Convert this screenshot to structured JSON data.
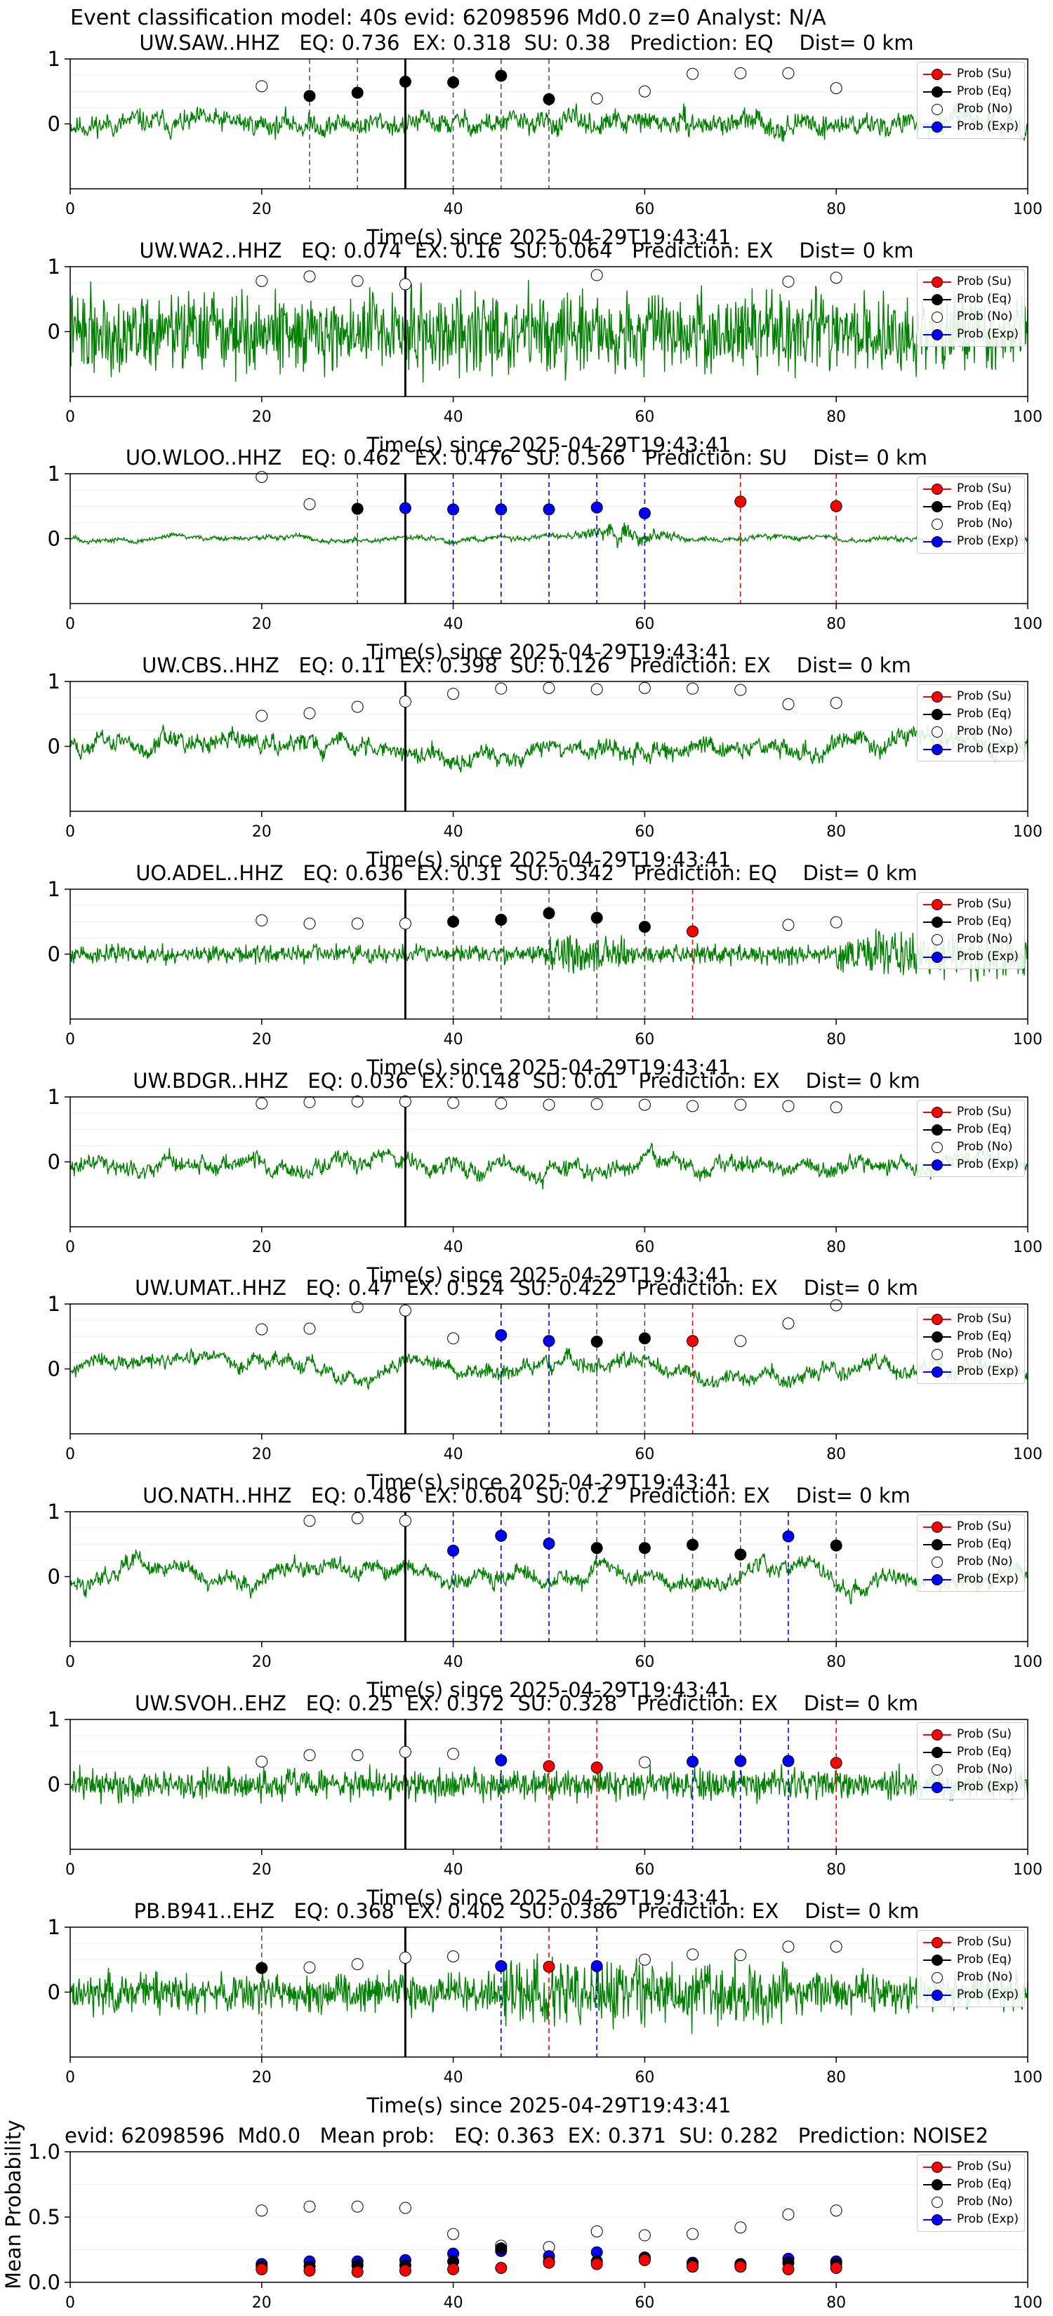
{
  "figure_title": "Event classification model: 40s evid: 62098596 Md0.0 z=0 Analyst: N/A",
  "colors": {
    "waveform": "#008000",
    "su": "#ff0000",
    "eq": "#000000",
    "no": "#ffffff",
    "exp": "#0000ff",
    "origin_line": "#000000"
  },
  "legend": [
    "Prob (Su)",
    "Prob (Eq)",
    "Prob (No)",
    "Prob (Exp)"
  ],
  "chart_data": [
    {
      "type": "line",
      "title": "UW.SAW..HHZ   EQ: 0.736  EX: 0.318  SU: 0.38   Prediction: EQ    Dist= 0 km",
      "xlabel": "Time(s) since 2025-04-29T19:43:41",
      "xlim": [
        0,
        100
      ],
      "ylim": [
        -1,
        1
      ],
      "xticks": [
        "0",
        "20",
        "40",
        "60",
        "80",
        "100"
      ],
      "yticks": [
        "1",
        "0"
      ],
      "origin_time": 35,
      "waveform": {
        "amplitude": 0.35,
        "style": "mixed",
        "seed": 11
      },
      "probs": [
        {
          "t": 20,
          "p": 0.58,
          "cls": "no"
        },
        {
          "t": 25,
          "p": 0.43,
          "cls": "eq"
        },
        {
          "t": 30,
          "p": 0.48,
          "cls": "eq"
        },
        {
          "t": 35,
          "p": 0.65,
          "cls": "eq"
        },
        {
          "t": 40,
          "p": 0.64,
          "cls": "eq"
        },
        {
          "t": 45,
          "p": 0.74,
          "cls": "eq"
        },
        {
          "t": 50,
          "p": 0.38,
          "cls": "eq"
        },
        {
          "t": 55,
          "p": 0.39,
          "cls": "no"
        },
        {
          "t": 60,
          "p": 0.5,
          "cls": "no"
        },
        {
          "t": 65,
          "p": 0.77,
          "cls": "no"
        },
        {
          "t": 70,
          "p": 0.78,
          "cls": "no"
        },
        {
          "t": 75,
          "p": 0.78,
          "cls": "no"
        },
        {
          "t": 80,
          "p": 0.55,
          "cls": "no"
        }
      ]
    },
    {
      "type": "line",
      "title": "UW.WA2..HHZ   EQ: 0.074  EX: 0.16  SU: 0.064   Prediction: EX    Dist= 0 km",
      "xlabel": "Time(s) since 2025-04-29T19:43:41",
      "xlim": [
        0,
        100
      ],
      "ylim": [
        -1,
        1
      ],
      "xticks": [
        "0",
        "20",
        "40",
        "60",
        "80",
        "100"
      ],
      "yticks": [
        "1",
        "0"
      ],
      "origin_time": 35,
      "waveform": {
        "amplitude": 0.9,
        "style": "noise",
        "seed": 22
      },
      "probs": [
        {
          "t": 20,
          "p": 0.78,
          "cls": "no"
        },
        {
          "t": 25,
          "p": 0.85,
          "cls": "no"
        },
        {
          "t": 30,
          "p": 0.78,
          "cls": "no"
        },
        {
          "t": 35,
          "p": 0.73,
          "cls": "no"
        },
        {
          "t": 55,
          "p": 0.87,
          "cls": "no"
        },
        {
          "t": 75,
          "p": 0.77,
          "cls": "no"
        },
        {
          "t": 80,
          "p": 0.83,
          "cls": "no"
        }
      ]
    },
    {
      "type": "line",
      "title": "UO.WLOO..HHZ   EQ: 0.462  EX: 0.476  SU: 0.566   Prediction: SU    Dist= 0 km",
      "xlabel": "Time(s) since 2025-04-29T19:43:41",
      "xlim": [
        0,
        100
      ],
      "ylim": [
        -1,
        1
      ],
      "xticks": [
        "0",
        "20",
        "40",
        "60",
        "80",
        "100"
      ],
      "yticks": [
        "1",
        "0"
      ],
      "origin_time": 35,
      "waveform": {
        "amplitude": 0.2,
        "style": "burst",
        "seed": 33
      },
      "probs": [
        {
          "t": 20,
          "p": 0.95,
          "cls": "no"
        },
        {
          "t": 25,
          "p": 0.53,
          "cls": "no"
        },
        {
          "t": 30,
          "p": 0.46,
          "cls": "eq"
        },
        {
          "t": 35,
          "p": 0.47,
          "cls": "exp"
        },
        {
          "t": 40,
          "p": 0.45,
          "cls": "exp"
        },
        {
          "t": 45,
          "p": 0.45,
          "cls": "exp"
        },
        {
          "t": 50,
          "p": 0.45,
          "cls": "exp"
        },
        {
          "t": 55,
          "p": 0.48,
          "cls": "exp"
        },
        {
          "t": 60,
          "p": 0.39,
          "cls": "exp"
        },
        {
          "t": 70,
          "p": 0.57,
          "cls": "su"
        },
        {
          "t": 80,
          "p": 0.5,
          "cls": "su"
        }
      ]
    },
    {
      "type": "line",
      "title": "UW.CBS..HHZ   EQ: 0.11  EX: 0.398  SU: 0.126   Prediction: EX    Dist= 0 km",
      "xlabel": "Time(s) since 2025-04-29T19:43:41",
      "xlim": [
        0,
        100
      ],
      "ylim": [
        -1,
        1
      ],
      "xticks": [
        "0",
        "20",
        "40",
        "60",
        "80",
        "100"
      ],
      "yticks": [
        "1",
        "0"
      ],
      "origin_time": 35,
      "waveform": {
        "amplitude": 0.55,
        "style": "wavy",
        "seed": 44
      },
      "probs": [
        {
          "t": 20,
          "p": 0.47,
          "cls": "no"
        },
        {
          "t": 25,
          "p": 0.51,
          "cls": "no"
        },
        {
          "t": 30,
          "p": 0.61,
          "cls": "no"
        },
        {
          "t": 35,
          "p": 0.69,
          "cls": "no"
        },
        {
          "t": 40,
          "p": 0.81,
          "cls": "no"
        },
        {
          "t": 45,
          "p": 0.89,
          "cls": "no"
        },
        {
          "t": 50,
          "p": 0.9,
          "cls": "no"
        },
        {
          "t": 55,
          "p": 0.88,
          "cls": "no"
        },
        {
          "t": 60,
          "p": 0.9,
          "cls": "no"
        },
        {
          "t": 65,
          "p": 0.89,
          "cls": "no"
        },
        {
          "t": 70,
          "p": 0.87,
          "cls": "no"
        },
        {
          "t": 75,
          "p": 0.65,
          "cls": "no"
        },
        {
          "t": 80,
          "p": 0.67,
          "cls": "no"
        }
      ]
    },
    {
      "type": "line",
      "title": "UO.ADEL..HHZ   EQ: 0.636  EX: 0.31  SU: 0.342   Prediction: EQ    Dist= 0 km",
      "xlabel": "Time(s) since 2025-04-29T19:43:41",
      "xlim": [
        0,
        100
      ],
      "ylim": [
        -1,
        1
      ],
      "xticks": [
        "0",
        "20",
        "40",
        "60",
        "80",
        "100"
      ],
      "yticks": [
        "1",
        "0"
      ],
      "origin_time": 35,
      "waveform": {
        "amplitude": 0.2,
        "style": "late",
        "seed": 55
      },
      "probs": [
        {
          "t": 20,
          "p": 0.52,
          "cls": "no"
        },
        {
          "t": 25,
          "p": 0.47,
          "cls": "no"
        },
        {
          "t": 30,
          "p": 0.47,
          "cls": "no"
        },
        {
          "t": 35,
          "p": 0.47,
          "cls": "no"
        },
        {
          "t": 40,
          "p": 0.5,
          "cls": "eq"
        },
        {
          "t": 45,
          "p": 0.53,
          "cls": "eq"
        },
        {
          "t": 50,
          "p": 0.63,
          "cls": "eq"
        },
        {
          "t": 55,
          "p": 0.56,
          "cls": "eq"
        },
        {
          "t": 60,
          "p": 0.42,
          "cls": "eq"
        },
        {
          "t": 65,
          "p": 0.35,
          "cls": "su"
        },
        {
          "t": 75,
          "p": 0.45,
          "cls": "no"
        },
        {
          "t": 80,
          "p": 0.49,
          "cls": "no"
        }
      ]
    },
    {
      "type": "line",
      "title": "UW.BDGR..HHZ   EQ: 0.036  EX: 0.148  SU: 0.01   Prediction: EX    Dist= 0 km",
      "xlabel": "Time(s) since 2025-04-29T19:43:41",
      "xlim": [
        0,
        100
      ],
      "ylim": [
        -1,
        1
      ],
      "xticks": [
        "0",
        "20",
        "40",
        "60",
        "80",
        "100"
      ],
      "yticks": [
        "1",
        "0"
      ],
      "origin_time": 35,
      "waveform": {
        "amplitude": 0.5,
        "style": "wavy",
        "seed": 66
      },
      "probs": [
        {
          "t": 20,
          "p": 0.9,
          "cls": "no"
        },
        {
          "t": 25,
          "p": 0.92,
          "cls": "no"
        },
        {
          "t": 30,
          "p": 0.93,
          "cls": "no"
        },
        {
          "t": 35,
          "p": 0.93,
          "cls": "no"
        },
        {
          "t": 40,
          "p": 0.91,
          "cls": "no"
        },
        {
          "t": 45,
          "p": 0.9,
          "cls": "no"
        },
        {
          "t": 50,
          "p": 0.88,
          "cls": "no"
        },
        {
          "t": 55,
          "p": 0.89,
          "cls": "no"
        },
        {
          "t": 60,
          "p": 0.88,
          "cls": "no"
        },
        {
          "t": 65,
          "p": 0.86,
          "cls": "no"
        },
        {
          "t": 70,
          "p": 0.88,
          "cls": "no"
        },
        {
          "t": 75,
          "p": 0.86,
          "cls": "no"
        },
        {
          "t": 80,
          "p": 0.84,
          "cls": "no"
        }
      ]
    },
    {
      "type": "line",
      "title": "UW.UMAT..HHZ   EQ: 0.47  EX: 0.524  SU: 0.422   Prediction: EX    Dist= 0 km",
      "xlabel": "Time(s) since 2025-04-29T19:43:41",
      "xlim": [
        0,
        100
      ],
      "ylim": [
        -1,
        1
      ],
      "xticks": [
        "0",
        "20",
        "40",
        "60",
        "80",
        "100"
      ],
      "yticks": [
        "1",
        "0"
      ],
      "origin_time": 35,
      "waveform": {
        "amplitude": 0.45,
        "style": "wavy",
        "seed": 77
      },
      "probs": [
        {
          "t": 20,
          "p": 0.61,
          "cls": "no"
        },
        {
          "t": 25,
          "p": 0.62,
          "cls": "no"
        },
        {
          "t": 30,
          "p": 0.95,
          "cls": "no"
        },
        {
          "t": 35,
          "p": 0.9,
          "cls": "no"
        },
        {
          "t": 40,
          "p": 0.47,
          "cls": "no"
        },
        {
          "t": 45,
          "p": 0.52,
          "cls": "exp"
        },
        {
          "t": 50,
          "p": 0.43,
          "cls": "exp"
        },
        {
          "t": 55,
          "p": 0.42,
          "cls": "eq"
        },
        {
          "t": 60,
          "p": 0.47,
          "cls": "eq"
        },
        {
          "t": 65,
          "p": 0.43,
          "cls": "su"
        },
        {
          "t": 70,
          "p": 0.43,
          "cls": "no"
        },
        {
          "t": 75,
          "p": 0.7,
          "cls": "no"
        },
        {
          "t": 80,
          "p": 0.98,
          "cls": "no"
        }
      ]
    },
    {
      "type": "line",
      "title": "UO.NATH..HHZ   EQ: 0.486  EX: 0.604  SU: 0.2   Prediction: EX    Dist= 0 km",
      "xlabel": "Time(s) since 2025-04-29T19:43:41",
      "xlim": [
        0,
        100
      ],
      "ylim": [
        -1,
        1
      ],
      "xticks": [
        "0",
        "20",
        "40",
        "60",
        "80",
        "100"
      ],
      "yticks": [
        "1",
        "0"
      ],
      "origin_time": 35,
      "waveform": {
        "amplitude": 0.5,
        "style": "wavy",
        "seed": 88
      },
      "probs": [
        {
          "t": 25,
          "p": 0.86,
          "cls": "no"
        },
        {
          "t": 30,
          "p": 0.9,
          "cls": "no"
        },
        {
          "t": 35,
          "p": 0.86,
          "cls": "no"
        },
        {
          "t": 40,
          "p": 0.4,
          "cls": "exp"
        },
        {
          "t": 45,
          "p": 0.63,
          "cls": "exp"
        },
        {
          "t": 50,
          "p": 0.51,
          "cls": "exp"
        },
        {
          "t": 55,
          "p": 0.44,
          "cls": "eq"
        },
        {
          "t": 60,
          "p": 0.44,
          "cls": "eq"
        },
        {
          "t": 65,
          "p": 0.49,
          "cls": "eq"
        },
        {
          "t": 70,
          "p": 0.34,
          "cls": "eq"
        },
        {
          "t": 75,
          "p": 0.62,
          "cls": "exp"
        },
        {
          "t": 80,
          "p": 0.48,
          "cls": "eq"
        }
      ]
    },
    {
      "type": "line",
      "title": "UW.SVOH..EHZ   EQ: 0.25  EX: 0.372  SU: 0.328   Prediction: EX    Dist= 0 km",
      "xlabel": "Time(s) since 2025-04-29T19:43:41",
      "xlim": [
        0,
        100
      ],
      "ylim": [
        -1,
        1
      ],
      "xticks": [
        "0",
        "20",
        "40",
        "60",
        "80",
        "100"
      ],
      "yticks": [
        "1",
        "0"
      ],
      "origin_time": 35,
      "waveform": {
        "amplitude": 0.35,
        "style": "noise",
        "seed": 99
      },
      "probs": [
        {
          "t": 20,
          "p": 0.35,
          "cls": "no"
        },
        {
          "t": 25,
          "p": 0.45,
          "cls": "no"
        },
        {
          "t": 30,
          "p": 0.45,
          "cls": "no"
        },
        {
          "t": 35,
          "p": 0.5,
          "cls": "no"
        },
        {
          "t": 40,
          "p": 0.47,
          "cls": "no"
        },
        {
          "t": 45,
          "p": 0.37,
          "cls": "exp"
        },
        {
          "t": 50,
          "p": 0.28,
          "cls": "su"
        },
        {
          "t": 55,
          "p": 0.26,
          "cls": "su"
        },
        {
          "t": 60,
          "p": 0.34,
          "cls": "no"
        },
        {
          "t": 65,
          "p": 0.35,
          "cls": "exp"
        },
        {
          "t": 70,
          "p": 0.36,
          "cls": "exp"
        },
        {
          "t": 75,
          "p": 0.36,
          "cls": "exp"
        },
        {
          "t": 80,
          "p": 0.33,
          "cls": "su"
        }
      ]
    },
    {
      "type": "line",
      "title": "PB.B941..EHZ   EQ: 0.368  EX: 0.402  SU: 0.386   Prediction: EX    Dist= 0 km",
      "xlabel": "Time(s) since 2025-04-29T19:43:41",
      "xlim": [
        0,
        100
      ],
      "ylim": [
        -1,
        1
      ],
      "xticks": [
        "0",
        "20",
        "40",
        "60",
        "80",
        "100"
      ],
      "yticks": [
        "1",
        "0"
      ],
      "origin_time": 35,
      "waveform": {
        "amplitude": 0.45,
        "style": "noise2",
        "seed": 111
      },
      "probs": [
        {
          "t": 20,
          "p": 0.37,
          "cls": "eq"
        },
        {
          "t": 25,
          "p": 0.38,
          "cls": "no"
        },
        {
          "t": 30,
          "p": 0.43,
          "cls": "no"
        },
        {
          "t": 35,
          "p": 0.53,
          "cls": "no"
        },
        {
          "t": 40,
          "p": 0.55,
          "cls": "no"
        },
        {
          "t": 45,
          "p": 0.4,
          "cls": "exp"
        },
        {
          "t": 50,
          "p": 0.39,
          "cls": "su"
        },
        {
          "t": 55,
          "p": 0.4,
          "cls": "exp"
        },
        {
          "t": 60,
          "p": 0.5,
          "cls": "no"
        },
        {
          "t": 65,
          "p": 0.58,
          "cls": "no"
        },
        {
          "t": 70,
          "p": 0.57,
          "cls": "no"
        },
        {
          "t": 75,
          "p": 0.7,
          "cls": "no"
        },
        {
          "t": 80,
          "p": 0.7,
          "cls": "no"
        }
      ]
    },
    {
      "type": "scatter",
      "title": "evid: 62098596  Md0.0   Mean prob:   EQ: 0.363  EX: 0.371  SU: 0.282   Prediction: NOISE2",
      "xlabel": "",
      "ylabel": "Mean Probability",
      "xlim": [
        0,
        100
      ],
      "ylim": [
        0,
        1
      ],
      "xticks": [
        "0",
        "20",
        "40",
        "60",
        "80",
        "100"
      ],
      "yticks": [
        "1.0",
        "0.5",
        "0.0"
      ],
      "x": [
        20,
        25,
        30,
        35,
        40,
        45,
        50,
        55,
        60,
        65,
        70,
        75,
        80
      ],
      "series": [
        {
          "name": "Prob (Su)",
          "cls": "su",
          "values": [
            0.1,
            0.09,
            0.08,
            0.09,
            0.1,
            0.11,
            0.15,
            0.14,
            0.17,
            0.12,
            0.12,
            0.1,
            0.11
          ]
        },
        {
          "name": "Prob (Eq)",
          "cls": "eq",
          "values": [
            0.12,
            0.12,
            0.13,
            0.13,
            0.16,
            0.26,
            0.16,
            0.16,
            0.18,
            0.14,
            0.14,
            0.15,
            0.14
          ]
        },
        {
          "name": "Prob (No)",
          "cls": "no",
          "values": [
            0.55,
            0.58,
            0.58,
            0.57,
            0.37,
            0.28,
            0.27,
            0.39,
            0.36,
            0.37,
            0.42,
            0.52,
            0.55
          ]
        },
        {
          "name": "Prob (Exp)",
          "cls": "exp",
          "values": [
            0.14,
            0.16,
            0.16,
            0.17,
            0.22,
            0.24,
            0.2,
            0.23,
            0.19,
            0.15,
            0.13,
            0.18,
            0.16
          ]
        }
      ]
    }
  ]
}
